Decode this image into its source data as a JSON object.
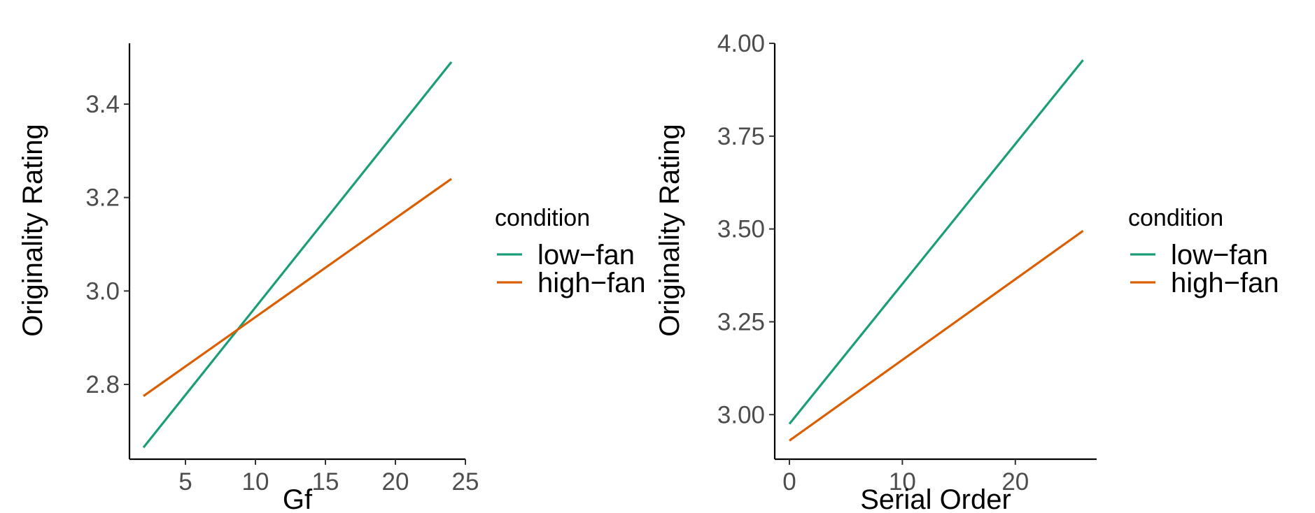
{
  "chart_data": [
    {
      "type": "line",
      "title": "",
      "xlabel": "Gf",
      "ylabel": "Originality Rating",
      "xlim": [
        1.0,
        25.0
      ],
      "ylim": [
        2.64,
        3.53
      ],
      "xticks": [
        5,
        10,
        15,
        20,
        25
      ],
      "yticks": [
        2.8,
        3.0,
        3.2,
        3.4
      ],
      "xtick_labels": [
        "5",
        "10",
        "15",
        "20",
        "25"
      ],
      "ytick_labels": [
        "2.8",
        "3.0",
        "3.2",
        "3.4"
      ],
      "grid": false,
      "legend": {
        "title": "condition",
        "placement": "right"
      },
      "series": [
        {
          "name": "low−fan",
          "color": "#1b9e77",
          "x": [
            2,
            24
          ],
          "y": [
            2.665,
            3.49
          ]
        },
        {
          "name": "high−fan",
          "color": "#d95f02",
          "x": [
            2,
            24
          ],
          "y": [
            2.775,
            3.24
          ]
        }
      ]
    },
    {
      "type": "line",
      "title": "",
      "xlabel": "Serial Order",
      "ylabel": "Originality Rating",
      "xlim": [
        -1.3,
        27.2
      ],
      "ylim": [
        2.88,
        4.0
      ],
      "xticks": [
        0,
        10,
        20
      ],
      "yticks": [
        3.0,
        3.25,
        3.5,
        3.75,
        4.0
      ],
      "xtick_labels": [
        "0",
        "10",
        "20"
      ],
      "ytick_labels": [
        "3.00",
        "3.25",
        "3.50",
        "3.75",
        "4.00"
      ],
      "grid": false,
      "legend": {
        "title": "condition",
        "placement": "right"
      },
      "series": [
        {
          "name": "low−fan",
          "color": "#1b9e77",
          "x": [
            0,
            26
          ],
          "y": [
            2.975,
            3.955
          ]
        },
        {
          "name": "high−fan",
          "color": "#d95f02",
          "x": [
            0,
            26
          ],
          "y": [
            2.93,
            3.495
          ]
        }
      ]
    }
  ]
}
